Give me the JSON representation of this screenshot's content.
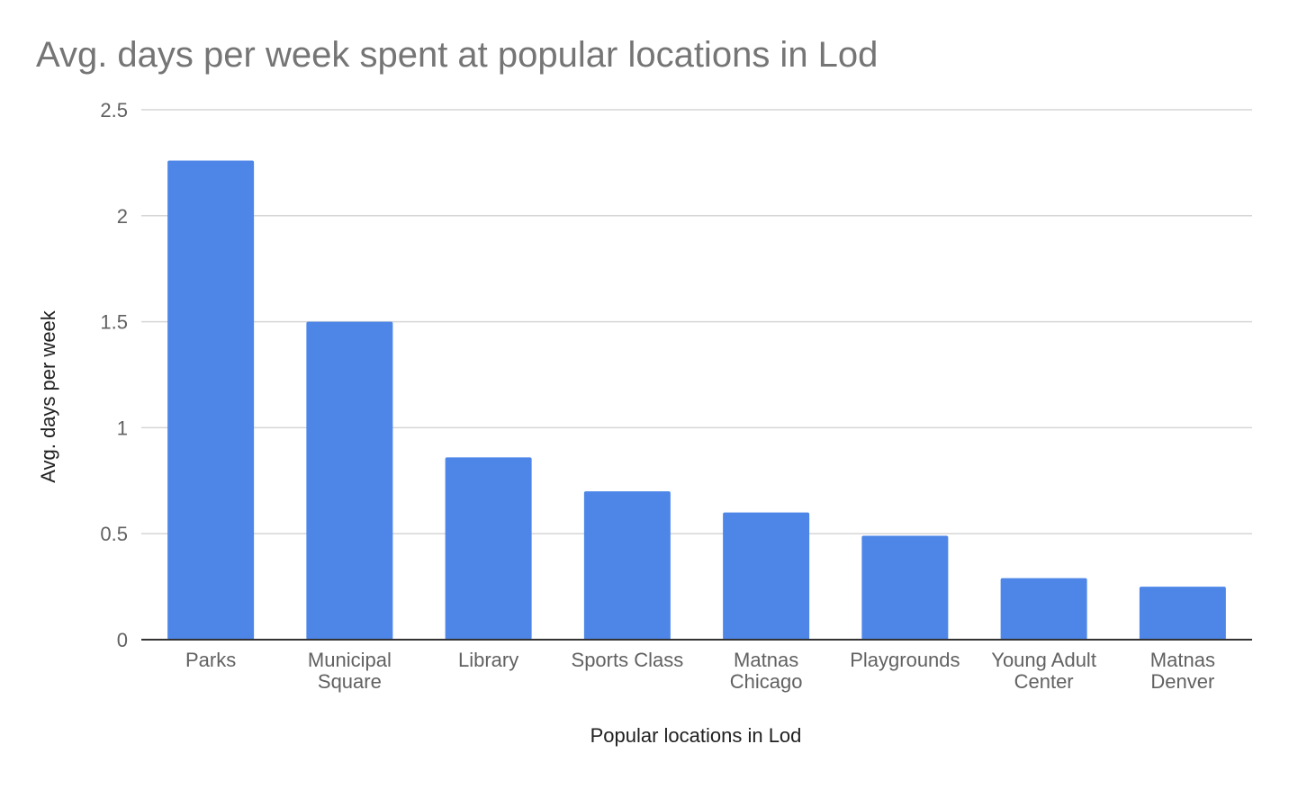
{
  "chart_data": {
    "type": "bar",
    "title": "Avg. days per week spent at popular locations in Lod",
    "xlabel": "Popular locations in Lod",
    "ylabel": "Avg. days per week",
    "categories": [
      [
        "Parks"
      ],
      [
        "Municipal",
        "Square"
      ],
      [
        "Library"
      ],
      [
        "Sports Class"
      ],
      [
        "Matnas",
        "Chicago"
      ],
      [
        "Playgrounds"
      ],
      [
        "Young Adult",
        "Center"
      ],
      [
        "Matnas",
        "Denver"
      ]
    ],
    "values": [
      2.26,
      1.5,
      0.86,
      0.7,
      0.6,
      0.49,
      0.29,
      0.25
    ],
    "ylim": [
      0,
      2.5
    ],
    "yticks": [
      "0",
      "0.5",
      "1",
      "1.5",
      "2",
      "2.5"
    ],
    "grid": true,
    "legend": "none",
    "bar_color": "#4e86e8"
  }
}
